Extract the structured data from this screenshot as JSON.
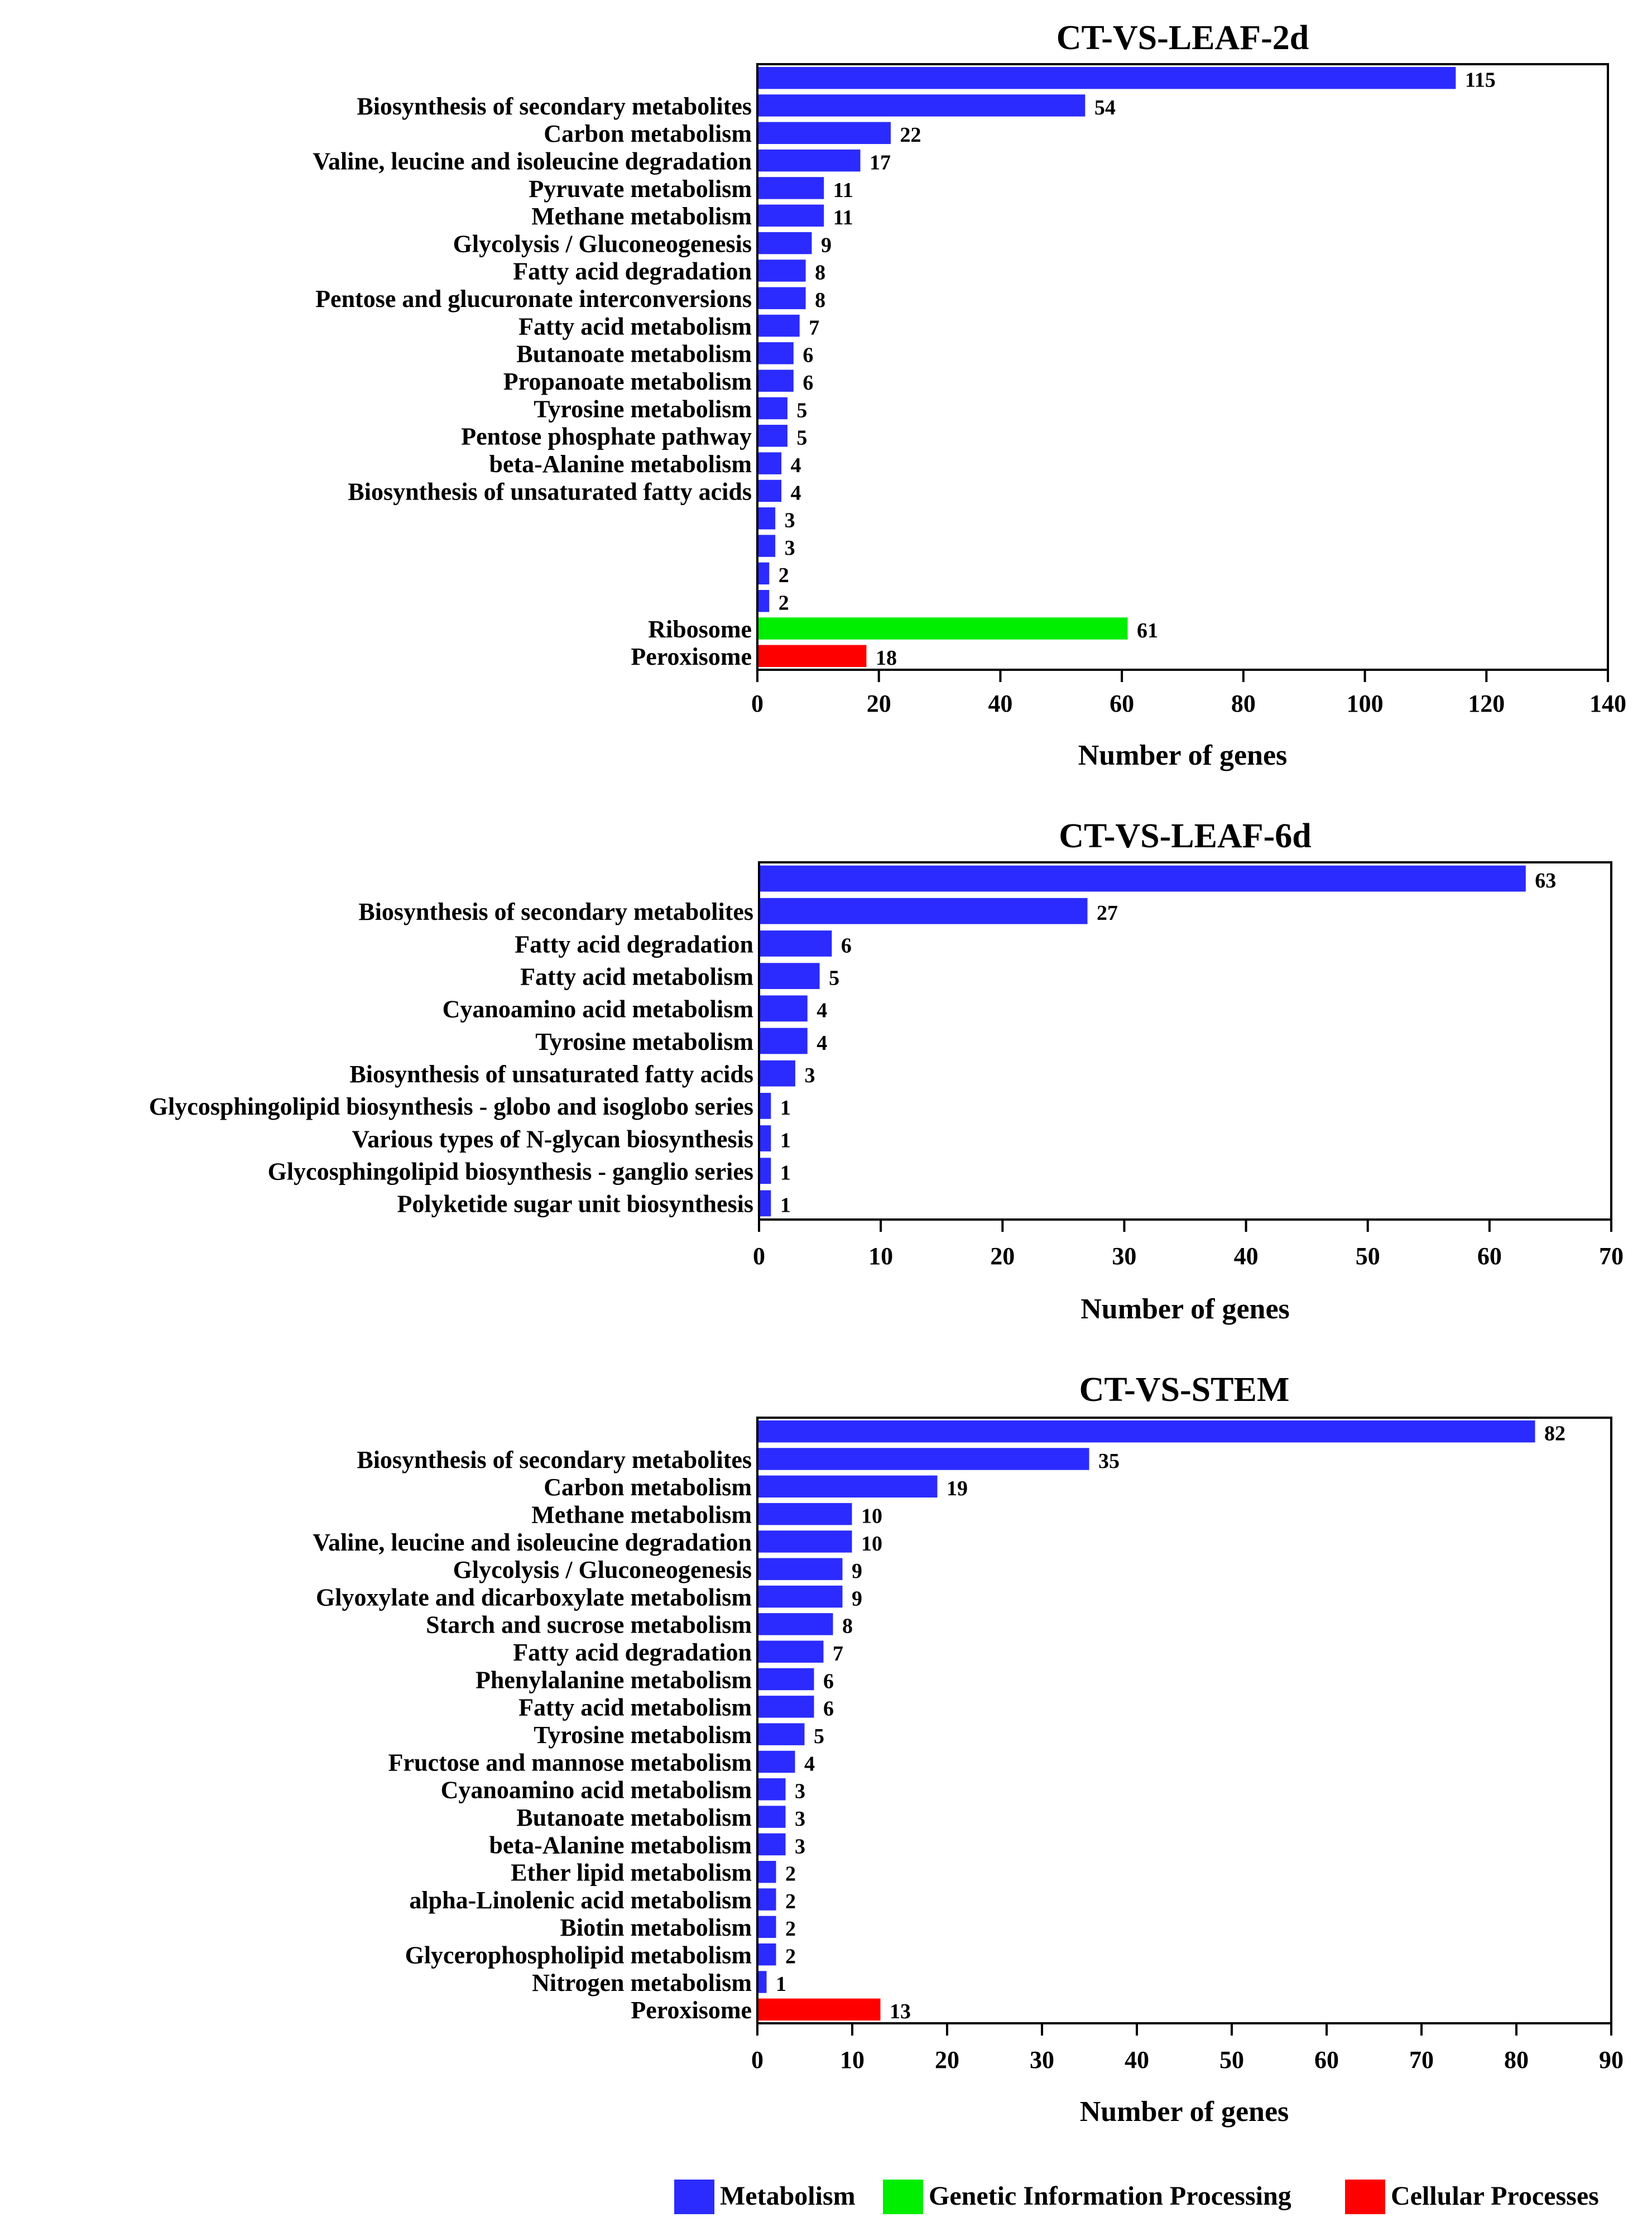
{
  "colors": {
    "Metabolism": "#2b2bff",
    "Genetic Information Processing": "#00ee00",
    "Cellular Processes": "#ff0000"
  },
  "legend": [
    {
      "label": "Metabolism",
      "color": "#2b2bff"
    },
    {
      "label": "Genetic Information Processing",
      "color": "#00ee00"
    },
    {
      "label": "Cellular Processes",
      "color": "#ff0000"
    }
  ],
  "chart_data": [
    {
      "type": "bar",
      "orientation": "horizontal",
      "title": "CT-VS-LEAF-2d",
      "xlabel": "Number of genes",
      "ylabel": "",
      "xlim": [
        0,
        140
      ],
      "xticks": [
        "0",
        "20",
        "40",
        "60",
        "80",
        "100",
        "120",
        "140"
      ],
      "categories": [
        "",
        "Biosynthesis of secondary metabolites",
        "Carbon metabolism",
        "Valine, leucine and isoleucine degradation",
        "Pyruvate metabolism",
        "Methane metabolism",
        "Glycolysis / Gluconeogenesis",
        "Fatty acid degradation",
        "Pentose and glucuronate interconversions",
        "Fatty acid metabolism",
        "Butanoate metabolism",
        "Propanoate metabolism",
        "Tyrosine metabolism",
        "Pentose phosphate pathway",
        "beta-Alanine metabolism",
        "Biosynthesis of unsaturated fatty acids",
        "",
        "",
        "",
        "",
        "Ribosome",
        "Peroxisome"
      ],
      "values": [
        115,
        54,
        22,
        17,
        11,
        11,
        9,
        8,
        8,
        7,
        6,
        6,
        5,
        5,
        4,
        4,
        3,
        3,
        2,
        2,
        61,
        18
      ],
      "value_labels": [
        "115",
        "54",
        "22",
        "17",
        "11",
        "11",
        "9",
        "8",
        "8",
        "7",
        "6",
        "6",
        "5",
        "5",
        "4",
        "4",
        "3",
        "3",
        "2",
        "2",
        "61",
        "18"
      ],
      "groups": [
        "Metabolism",
        "Metabolism",
        "Metabolism",
        "Metabolism",
        "Metabolism",
        "Metabolism",
        "Metabolism",
        "Metabolism",
        "Metabolism",
        "Metabolism",
        "Metabolism",
        "Metabolism",
        "Metabolism",
        "Metabolism",
        "Metabolism",
        "Metabolism",
        "Metabolism",
        "Metabolism",
        "Metabolism",
        "Metabolism",
        "Genetic Information Processing",
        "Cellular Processes"
      ]
    },
    {
      "type": "bar",
      "orientation": "horizontal",
      "title": "CT-VS-LEAF-6d",
      "xlabel": "Number of genes",
      "ylabel": "",
      "xlim": [
        0,
        70
      ],
      "xticks": [
        "0",
        "10",
        "20",
        "30",
        "40",
        "50",
        "60",
        "70"
      ],
      "categories": [
        "",
        "Biosynthesis of secondary metabolites",
        "Fatty acid degradation",
        "Fatty acid metabolism",
        "Cyanoamino acid metabolism",
        "Tyrosine metabolism",
        "Biosynthesis of unsaturated fatty acids",
        "Glycosphingolipid biosynthesis - globo and isoglobo series",
        "Various types of N-glycan biosynthesis",
        "Glycosphingolipid biosynthesis - ganglio series",
        "Polyketide sugar unit biosynthesis"
      ],
      "values": [
        63,
        27,
        6,
        5,
        4,
        4,
        3,
        1,
        1,
        1,
        1
      ],
      "value_labels": [
        "63",
        "27",
        "6",
        "5",
        "4",
        "4",
        "3",
        "1",
        "1",
        "1",
        "1"
      ],
      "groups": [
        "Metabolism",
        "Metabolism",
        "Metabolism",
        "Metabolism",
        "Metabolism",
        "Metabolism",
        "Metabolism",
        "Metabolism",
        "Metabolism",
        "Metabolism",
        "Metabolism"
      ]
    },
    {
      "type": "bar",
      "orientation": "horizontal",
      "title": "CT-VS-STEM",
      "xlabel": "Number of genes",
      "ylabel": "",
      "xlim": [
        0,
        90
      ],
      "xticks": [
        "0",
        "10",
        "20",
        "30",
        "40",
        "50",
        "60",
        "70",
        "80",
        "90"
      ],
      "categories": [
        "",
        "Biosynthesis of secondary metabolites",
        "Carbon metabolism",
        "Methane metabolism",
        "Valine, leucine and isoleucine degradation",
        "Glycolysis / Gluconeogenesis",
        "Glyoxylate and dicarboxylate metabolism",
        "Starch and sucrose metabolism",
        "Fatty acid degradation",
        "Phenylalanine metabolism",
        "Fatty acid metabolism",
        "Tyrosine metabolism",
        "Fructose and mannose metabolism",
        "Cyanoamino acid metabolism",
        "Butanoate metabolism",
        "beta-Alanine metabolism",
        "Ether lipid metabolism",
        "alpha-Linolenic acid metabolism",
        "Biotin metabolism",
        "Glycerophospholipid metabolism",
        "Nitrogen metabolism",
        "Peroxisome"
      ],
      "values": [
        82,
        35,
        19,
        10,
        10,
        9,
        9,
        8,
        7,
        6,
        6,
        5,
        4,
        3,
        3,
        3,
        2,
        2,
        2,
        2,
        1,
        13
      ],
      "value_labels": [
        "82",
        "35",
        "19",
        "10",
        "10",
        "9",
        "9",
        "8",
        "7",
        "6",
        "6",
        "5",
        "4",
        "3",
        "3",
        "3",
        "2",
        "2",
        "2",
        "2",
        "1",
        "13"
      ],
      "groups": [
        "Metabolism",
        "Metabolism",
        "Metabolism",
        "Metabolism",
        "Metabolism",
        "Metabolism",
        "Metabolism",
        "Metabolism",
        "Metabolism",
        "Metabolism",
        "Metabolism",
        "Metabolism",
        "Metabolism",
        "Metabolism",
        "Metabolism",
        "Metabolism",
        "Metabolism",
        "Metabolism",
        "Metabolism",
        "Metabolism",
        "Metabolism",
        "Cellular Processes"
      ]
    }
  ]
}
